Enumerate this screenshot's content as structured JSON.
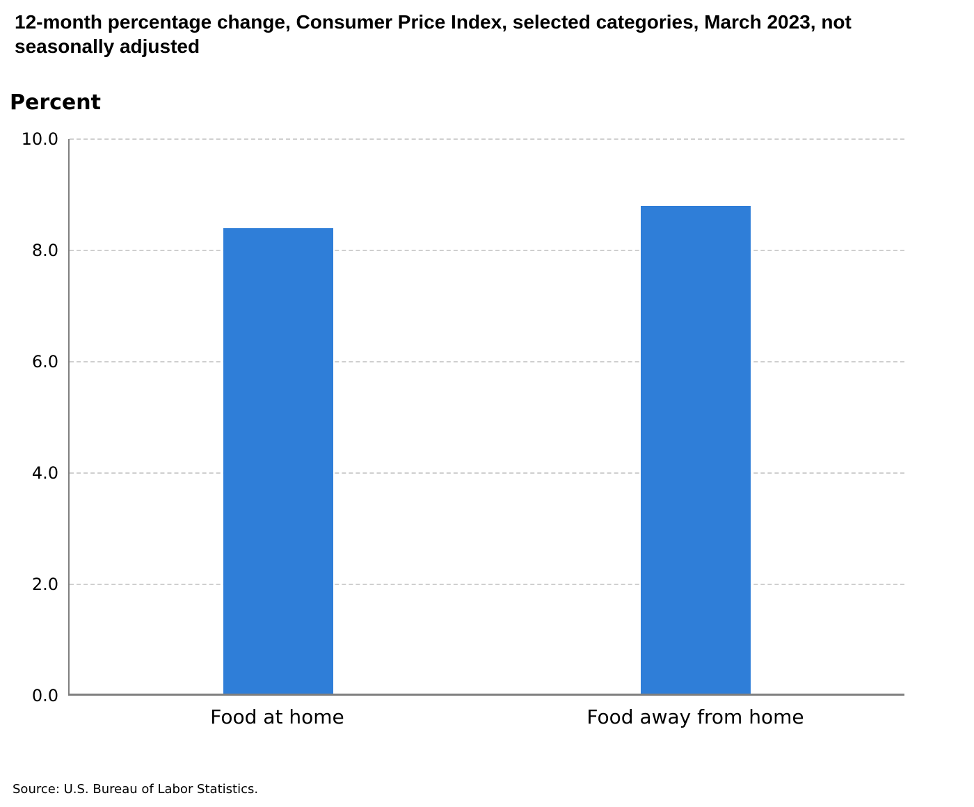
{
  "chart_data": {
    "type": "bar",
    "title": "12-month percentage change, Consumer Price Index, selected categories, March 2023, not seasonally adjusted",
    "ylabel": "Percent",
    "xlabel": "",
    "categories": [
      "Food at home",
      "Food away from home"
    ],
    "values": [
      8.4,
      8.8
    ],
    "ylim": [
      0,
      10
    ],
    "yticks": [
      10.0,
      8.0,
      6.0,
      4.0,
      2.0,
      0.0
    ],
    "ytick_labels": [
      "10.0",
      "8.0",
      "6.0",
      "4.0",
      "2.0",
      "0.0"
    ],
    "grid": "horizontal-dashed",
    "legend": "none",
    "bar_color": "#2F7ED8",
    "axis_color": "#7f7f7f",
    "gridline_color": "#cfcfcf",
    "source": "Source: U.S. Bureau of Labor Statistics."
  }
}
